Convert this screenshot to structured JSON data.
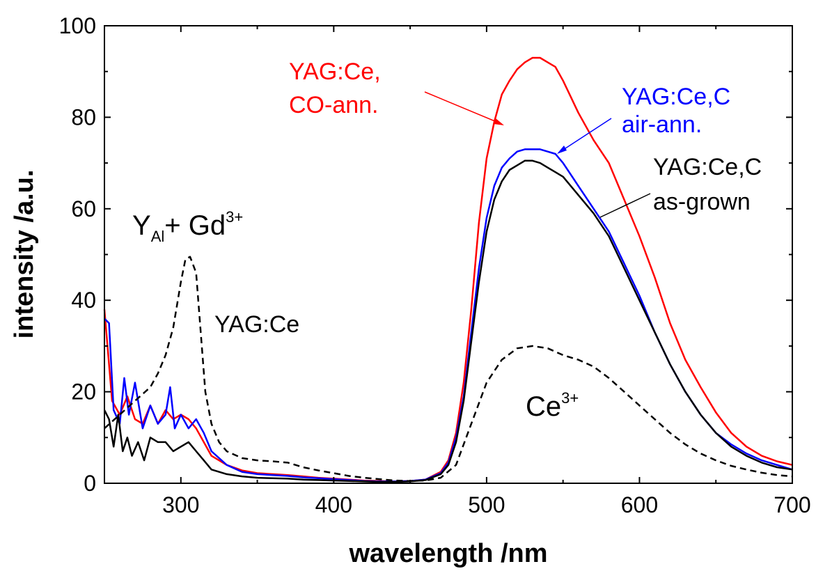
{
  "chart_data": {
    "type": "line",
    "title": "",
    "xlabel": "wavelength /nm",
    "ylabel": "intensity /a.u.",
    "xlim": [
      250,
      700
    ],
    "ylim": [
      0,
      100
    ],
    "x_ticks": [
      300,
      400,
      500,
      600,
      700
    ],
    "x_tick_labels": [
      "300",
      "400",
      "500",
      "600",
      "700"
    ],
    "y_ticks": [
      0,
      20,
      40,
      60,
      80,
      100
    ],
    "y_tick_labels": [
      "0",
      "20",
      "40",
      "60",
      "80",
      "100"
    ],
    "grid": false,
    "series": [
      {
        "color": "#ff0000",
        "dash": "solid",
        "x": [
          250,
          255,
          260,
          265,
          270,
          275,
          280,
          285,
          290,
          295,
          300,
          305,
          310,
          315,
          320,
          330,
          340,
          350,
          360,
          370,
          380,
          390,
          400,
          410,
          420,
          430,
          440,
          450,
          460,
          470,
          475,
          480,
          485,
          490,
          495,
          500,
          505,
          510,
          515,
          520,
          525,
          530,
          535,
          540,
          545,
          550,
          560,
          570,
          580,
          590,
          600,
          610,
          620,
          630,
          640,
          650,
          660,
          670,
          680,
          690,
          700
        ],
        "y": [
          38,
          18,
          15,
          19,
          14,
          13,
          17,
          13,
          16,
          14,
          15,
          14,
          12,
          9,
          6,
          4,
          2.8,
          2.2,
          2.0,
          1.8,
          1.5,
          1.2,
          1.0,
          0.8,
          0.6,
          0.5,
          0.4,
          0.5,
          0.8,
          2.5,
          5,
          11,
          22,
          38,
          57,
          71,
          79,
          85,
          88,
          90.5,
          92,
          93,
          93,
          92,
          91,
          88,
          81,
          75,
          70,
          62,
          54,
          45,
          35,
          27,
          21,
          15.5,
          11,
          8,
          6,
          4.8,
          4
        ]
      },
      {
        "color": "#0000ff",
        "dash": "solid",
        "x": [
          250,
          253,
          256,
          260,
          263,
          266,
          270,
          275,
          280,
          285,
          290,
          293,
          296,
          300,
          305,
          310,
          315,
          320,
          330,
          340,
          350,
          360,
          370,
          380,
          390,
          400,
          410,
          420,
          430,
          440,
          450,
          460,
          470,
          475,
          480,
          485,
          490,
          495,
          500,
          505,
          510,
          515,
          520,
          525,
          530,
          535,
          540,
          545,
          550,
          560,
          570,
          580,
          590,
          600,
          610,
          620,
          630,
          640,
          650,
          660,
          670,
          680,
          690,
          700
        ],
        "y": [
          36,
          35,
          16,
          13,
          23,
          15,
          22,
          12,
          17,
          13,
          15,
          21,
          12,
          15,
          12,
          14,
          11,
          7,
          4,
          2.5,
          2,
          1.8,
          1.6,
          1.3,
          1.1,
          0.9,
          0.7,
          0.5,
          0.4,
          0.4,
          0.5,
          0.8,
          2.2,
          4.5,
          10,
          19,
          33,
          47,
          58,
          65,
          69,
          71,
          72.5,
          73,
          73,
          73,
          72.5,
          72,
          70,
          65,
          60,
          55,
          48,
          41,
          33,
          26,
          20,
          15,
          11,
          8.5,
          6.5,
          5,
          4,
          3
        ]
      },
      {
        "color": "#000000",
        "dash": "solid",
        "x": [
          250,
          253,
          256,
          259,
          262,
          265,
          268,
          272,
          276,
          280,
          285,
          290,
          295,
          300,
          305,
          310,
          315,
          320,
          330,
          340,
          350,
          360,
          370,
          380,
          390,
          400,
          410,
          420,
          430,
          440,
          450,
          460,
          470,
          475,
          480,
          485,
          490,
          495,
          500,
          505,
          510,
          515,
          520,
          525,
          530,
          535,
          540,
          545,
          550,
          560,
          570,
          580,
          590,
          600,
          610,
          620,
          630,
          640,
          650,
          660,
          670,
          680,
          690,
          700
        ],
        "y": [
          16,
          14,
          8,
          15,
          7,
          10,
          6,
          9,
          5,
          10,
          9,
          9,
          7,
          8,
          9,
          7,
          5,
          3,
          2,
          1.5,
          1.2,
          1.1,
          1.0,
          0.8,
          0.7,
          0.6,
          0.5,
          0.4,
          0.3,
          0.3,
          0.4,
          0.7,
          2,
          4,
          9,
          18,
          31,
          44,
          55,
          62,
          66,
          68.5,
          69.5,
          70.5,
          70.5,
          70,
          69,
          68,
          67,
          63,
          59,
          54,
          47,
          40,
          33,
          26,
          20,
          15,
          11,
          8,
          6,
          4.5,
          3.5,
          3
        ]
      },
      {
        "color": "#000000",
        "dash": "dashed",
        "x": [
          250,
          255,
          260,
          265,
          270,
          275,
          280,
          285,
          290,
          295,
          300,
          303,
          306,
          310,
          313,
          316,
          320,
          325,
          330,
          340,
          350,
          360,
          370,
          380,
          390,
          400,
          410,
          420,
          430,
          440,
          450,
          460,
          470,
          480,
          490,
          500,
          510,
          520,
          530,
          540,
          550,
          560,
          570,
          580,
          590,
          600,
          610,
          620,
          630,
          640,
          650,
          660,
          670,
          680,
          690,
          700
        ],
        "y": [
          12,
          13.5,
          15,
          16.5,
          18,
          19.5,
          21,
          24,
          28,
          34,
          44,
          49,
          49.5,
          46,
          33,
          20,
          13,
          9,
          7,
          5.5,
          5,
          4.8,
          4.5,
          3.5,
          2.8,
          2.2,
          1.6,
          1.2,
          0.9,
          0.6,
          0.5,
          0.6,
          1.2,
          4,
          13,
          22,
          27,
          29.5,
          30,
          29.5,
          28,
          27,
          25.5,
          23,
          20,
          17,
          14,
          11,
          8.5,
          6.5,
          5,
          3.8,
          3,
          2.3,
          1.8,
          1.5
        ]
      }
    ],
    "annotations": {
      "yagce_co_line1": "YAG:Ce,",
      "yagce_co_line2": "CO-ann.",
      "yagcec_air_line1": "YAG:Ce,C",
      "yagcec_air_line2": "air-ann.",
      "yagcec_asgrown_line1": "YAG:Ce,C",
      "yagcec_asgrown_line2": "as-grown",
      "yal_base": "Y",
      "yal_sub": "Al",
      "yal_plus": "+ Gd",
      "yal_sup": "3+",
      "yagce_dashed": "YAG:Ce",
      "ce_base": "Ce",
      "ce_sup": "3+"
    }
  }
}
